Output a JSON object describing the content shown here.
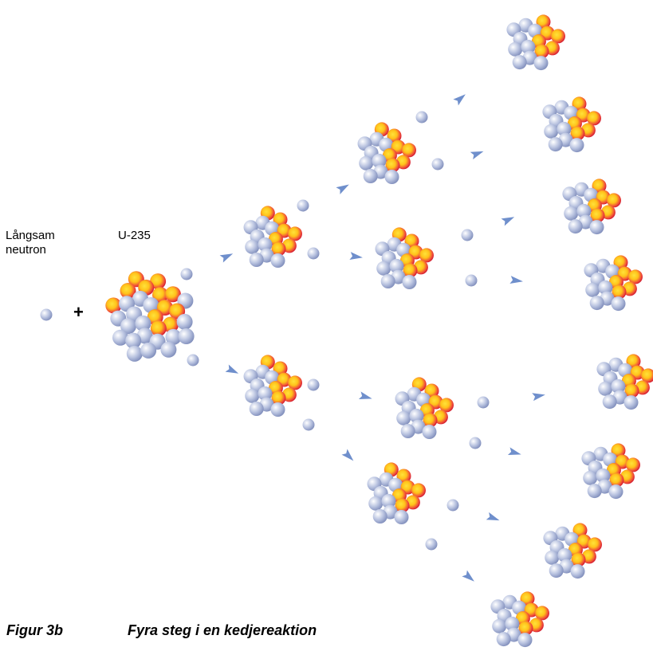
{
  "labels": {
    "slow_neutron_line1": "Långsam",
    "slow_neutron_line2": "neutron",
    "isotope": "U-235",
    "plus": "+",
    "figure_number": "Figur 3b",
    "caption": "Fyra steg i en kedjereaktion"
  },
  "colors": {
    "neutron": "#b9c3e0",
    "proton_outer": "#e0283c",
    "proton_inner": "#ffd21e",
    "arrow": "#6f8fcc"
  },
  "stages": 4
}
